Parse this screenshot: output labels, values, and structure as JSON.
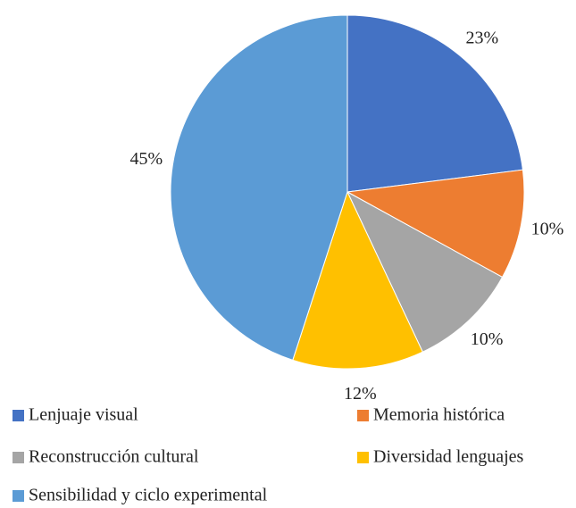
{
  "chart_data": {
    "type": "pie",
    "categories": [
      "Lenjuaje visual",
      "Memoria histórica",
      "Reconstrucción cultural",
      "Diversidad lenguajes",
      "Sensibilidad y ciclo experimental"
    ],
    "values": [
      23,
      10,
      10,
      12,
      45
    ],
    "value_labels": [
      "23%",
      "10%",
      "10%",
      "12%",
      "45%"
    ],
    "colors": [
      "#4472c4",
      "#ed7d31",
      "#a5a5a5",
      "#ffc000",
      "#5b9bd5"
    ],
    "legend": "bottom"
  }
}
